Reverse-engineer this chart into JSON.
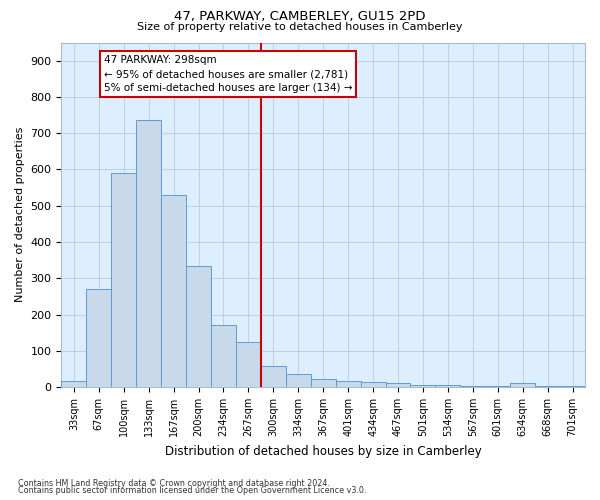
{
  "title": "47, PARKWAY, CAMBERLEY, GU15 2PD",
  "subtitle": "Size of property relative to detached houses in Camberley",
  "xlabel": "Distribution of detached houses by size in Camberley",
  "ylabel": "Number of detached properties",
  "bar_labels": [
    "33sqm",
    "67sqm",
    "100sqm",
    "133sqm",
    "167sqm",
    "200sqm",
    "234sqm",
    "267sqm",
    "300sqm",
    "334sqm",
    "367sqm",
    "401sqm",
    "434sqm",
    "467sqm",
    "501sqm",
    "534sqm",
    "567sqm",
    "601sqm",
    "634sqm",
    "668sqm",
    "701sqm"
  ],
  "bar_heights": [
    18,
    270,
    590,
    735,
    530,
    335,
    170,
    125,
    58,
    35,
    22,
    18,
    15,
    10,
    7,
    5,
    4,
    3,
    12,
    2,
    2
  ],
  "bar_color": "#c8daea",
  "bar_edge_color": "#5b9bd5",
  "vline_color": "#cc0000",
  "vline_index": 8,
  "annotation_text": "47 PARKWAY: 298sqm\n← 95% of detached houses are smaller (2,781)\n5% of semi-detached houses are larger (134) →",
  "annotation_box_facecolor": "#ffffff",
  "annotation_box_edgecolor": "#cc0000",
  "ylim": [
    0,
    950
  ],
  "yticks": [
    0,
    100,
    200,
    300,
    400,
    500,
    600,
    700,
    800,
    900
  ],
  "footer1": "Contains HM Land Registry data © Crown copyright and database right 2024.",
  "footer2": "Contains public sector information licensed under the Open Government Licence v3.0.",
  "fig_facecolor": "#ffffff",
  "plot_facecolor": "#ddeeff",
  "grid_color": "#b8ccd8",
  "spine_color": "#aabbcc"
}
